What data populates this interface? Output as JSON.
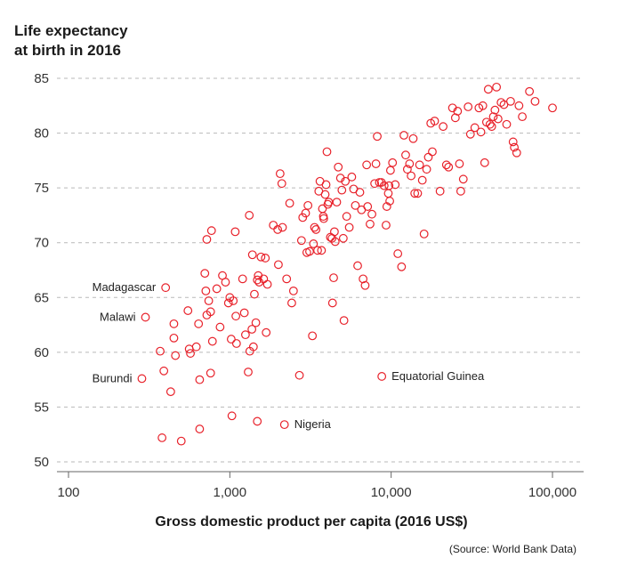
{
  "chart_data": {
    "type": "scatter",
    "title": "Life expectancy at birth in 2016",
    "title_lines": [
      "Life expectancy",
      "at birth in 2016"
    ],
    "xlabel": "Gross domestic product per capita (2016 US$)",
    "ylabel": "",
    "source": "(Source: World Bank Data)",
    "x_scale": "log",
    "xlim": [
      100,
      100000
    ],
    "ylim": [
      50,
      85
    ],
    "x_ticks": [
      {
        "value": 100,
        "label": "100"
      },
      {
        "value": 1000,
        "label": "1,000"
      },
      {
        "value": 10000,
        "label": "10,000"
      },
      {
        "value": 100000,
        "label": "100,000"
      }
    ],
    "y_ticks": [
      50,
      55,
      60,
      65,
      70,
      75,
      80,
      85
    ],
    "grid": "horizontal dashed",
    "marker_color": "#e8212a",
    "annotations": [
      {
        "text": "Madagascar",
        "x": 400,
        "y": 65.9,
        "side": "left"
      },
      {
        "text": "Malawi",
        "x": 300,
        "y": 63.2,
        "side": "left"
      },
      {
        "text": "Burundi",
        "x": 285,
        "y": 57.6,
        "side": "left"
      },
      {
        "text": "Equatorial Guinea",
        "x": 8750,
        "y": 57.8,
        "side": "right"
      },
      {
        "text": "Nigeria",
        "x": 2180,
        "y": 53.4,
        "side": "right"
      }
    ],
    "points": [
      [
        400,
        65.9
      ],
      [
        300,
        63.2
      ],
      [
        285,
        57.6
      ],
      [
        8750,
        57.8
      ],
      [
        2180,
        53.4
      ],
      [
        380,
        52.2
      ],
      [
        500,
        51.9
      ],
      [
        650,
        53.0
      ],
      [
        1030,
        54.2
      ],
      [
        1480,
        53.7
      ],
      [
        430,
        56.4
      ],
      [
        390,
        58.3
      ],
      [
        370,
        60.1
      ],
      [
        460,
        59.7
      ],
      [
        450,
        61.3
      ],
      [
        450,
        62.6
      ],
      [
        550,
        63.8
      ],
      [
        560,
        60.3
      ],
      [
        570,
        59.9
      ],
      [
        620,
        60.5
      ],
      [
        640,
        62.6
      ],
      [
        650,
        57.5
      ],
      [
        700,
        67.2
      ],
      [
        710,
        65.6
      ],
      [
        720,
        63.4
      ],
      [
        740,
        64.7
      ],
      [
        760,
        63.7
      ],
      [
        760,
        58.1
      ],
      [
        780,
        61.0
      ],
      [
        830,
        65.8
      ],
      [
        870,
        62.3
      ],
      [
        900,
        67.0
      ],
      [
        940,
        66.4
      ],
      [
        980,
        64.5
      ],
      [
        1000,
        65.0
      ],
      [
        1020,
        61.2
      ],
      [
        1050,
        64.7
      ],
      [
        1090,
        63.3
      ],
      [
        1100,
        60.8
      ],
      [
        1200,
        66.7
      ],
      [
        1230,
        63.6
      ],
      [
        1250,
        61.6
      ],
      [
        1300,
        58.2
      ],
      [
        1330,
        60.1
      ],
      [
        1370,
        62.1
      ],
      [
        1400,
        60.5
      ],
      [
        1420,
        65.3
      ],
      [
        1450,
        62.7
      ],
      [
        1480,
        66.6
      ],
      [
        1500,
        67.0
      ],
      [
        1520,
        66.4
      ],
      [
        1560,
        68.7
      ],
      [
        1620,
        66.7
      ],
      [
        1660,
        68.6
      ],
      [
        1680,
        61.8
      ],
      [
        1710,
        66.2
      ],
      [
        720,
        70.3
      ],
      [
        770,
        71.1
      ],
      [
        1080,
        71.0
      ],
      [
        1320,
        72.5
      ],
      [
        1380,
        68.9
      ],
      [
        1860,
        71.6
      ],
      [
        1980,
        71.2
      ],
      [
        2000,
        68.0
      ],
      [
        2050,
        76.3
      ],
      [
        2100,
        75.4
      ],
      [
        2120,
        71.4
      ],
      [
        2250,
        66.7
      ],
      [
        2350,
        73.6
      ],
      [
        2420,
        64.5
      ],
      [
        2480,
        65.6
      ],
      [
        2700,
        57.9
      ],
      [
        2780,
        70.2
      ],
      [
        2830,
        72.3
      ],
      [
        2950,
        72.7
      ],
      [
        3000,
        69.1
      ],
      [
        3050,
        73.4
      ],
      [
        3120,
        69.2
      ],
      [
        3250,
        61.5
      ],
      [
        3300,
        69.9
      ],
      [
        3350,
        71.4
      ],
      [
        3420,
        71.2
      ],
      [
        3500,
        69.3
      ],
      [
        3560,
        74.7
      ],
      [
        3620,
        75.6
      ],
      [
        3700,
        69.3
      ],
      [
        3750,
        73.1
      ],
      [
        3800,
        72.4
      ],
      [
        3820,
        72.2
      ],
      [
        3900,
        74.4
      ],
      [
        3950,
        75.3
      ],
      [
        4000,
        78.3
      ],
      [
        4050,
        73.5
      ],
      [
        4100,
        73.7
      ],
      [
        4200,
        70.5
      ],
      [
        4300,
        70.4
      ],
      [
        4330,
        64.5
      ],
      [
        4400,
        66.8
      ],
      [
        4450,
        71.0
      ],
      [
        4500,
        70.1
      ],
      [
        4600,
        73.7
      ],
      [
        4700,
        76.9
      ],
      [
        4850,
        75.9
      ],
      [
        4950,
        74.8
      ],
      [
        5050,
        70.4
      ],
      [
        5100,
        62.9
      ],
      [
        5200,
        75.6
      ],
      [
        5300,
        72.4
      ],
      [
        5500,
        71.4
      ],
      [
        5700,
        76.0
      ],
      [
        5850,
        74.9
      ],
      [
        6000,
        73.4
      ],
      [
        6200,
        67.9
      ],
      [
        6400,
        74.6
      ],
      [
        6550,
        73.0
      ],
      [
        6700,
        66.7
      ],
      [
        6900,
        66.1
      ],
      [
        7050,
        77.1
      ],
      [
        7150,
        73.3
      ],
      [
        7400,
        71.7
      ],
      [
        7600,
        72.6
      ],
      [
        7900,
        75.4
      ],
      [
        8050,
        77.2
      ],
      [
        8200,
        79.7
      ],
      [
        8450,
        75.5
      ],
      [
        8700,
        75.5
      ],
      [
        9050,
        75.2
      ],
      [
        9300,
        71.6
      ],
      [
        9400,
        73.3
      ],
      [
        9600,
        74.5
      ],
      [
        9700,
        75.2
      ],
      [
        9800,
        73.8
      ],
      [
        9900,
        76.6
      ],
      [
        10200,
        77.3
      ],
      [
        10600,
        75.3
      ],
      [
        11000,
        69.0
      ],
      [
        11600,
        67.8
      ],
      [
        12000,
        79.8
      ],
      [
        12300,
        78.0
      ],
      [
        12600,
        76.7
      ],
      [
        13000,
        77.2
      ],
      [
        13300,
        76.1
      ],
      [
        13700,
        79.5
      ],
      [
        14000,
        74.5
      ],
      [
        14600,
        74.5
      ],
      [
        15000,
        77.1
      ],
      [
        15600,
        75.7
      ],
      [
        16000,
        70.8
      ],
      [
        16600,
        76.7
      ],
      [
        17000,
        77.8
      ],
      [
        17600,
        80.9
      ],
      [
        18000,
        78.3
      ],
      [
        18600,
        81.1
      ],
      [
        20100,
        74.7
      ],
      [
        21000,
        80.6
      ],
      [
        22000,
        77.1
      ],
      [
        22700,
        76.9
      ],
      [
        24000,
        82.3
      ],
      [
        25000,
        81.4
      ],
      [
        25800,
        82.0
      ],
      [
        26500,
        77.2
      ],
      [
        27000,
        74.7
      ],
      [
        28000,
        75.8
      ],
      [
        30000,
        82.4
      ],
      [
        31000,
        79.9
      ],
      [
        33000,
        80.5
      ],
      [
        35000,
        82.3
      ],
      [
        36000,
        80.1
      ],
      [
        37000,
        82.5
      ],
      [
        38000,
        77.3
      ],
      [
        39000,
        81.0
      ],
      [
        40000,
        84.0
      ],
      [
        41000,
        80.8
      ],
      [
        42000,
        80.6
      ],
      [
        43000,
        81.5
      ],
      [
        44000,
        82.1
      ],
      [
        45000,
        84.2
      ],
      [
        46000,
        81.3
      ],
      [
        48000,
        82.8
      ],
      [
        50000,
        82.6
      ],
      [
        52000,
        80.8
      ],
      [
        55000,
        82.9
      ],
      [
        57000,
        79.2
      ],
      [
        58000,
        78.7
      ],
      [
        60000,
        78.2
      ],
      [
        62000,
        82.5
      ],
      [
        65000,
        81.5
      ],
      [
        72000,
        83.8
      ],
      [
        78000,
        82.9
      ],
      [
        100000,
        82.3
      ]
    ]
  }
}
